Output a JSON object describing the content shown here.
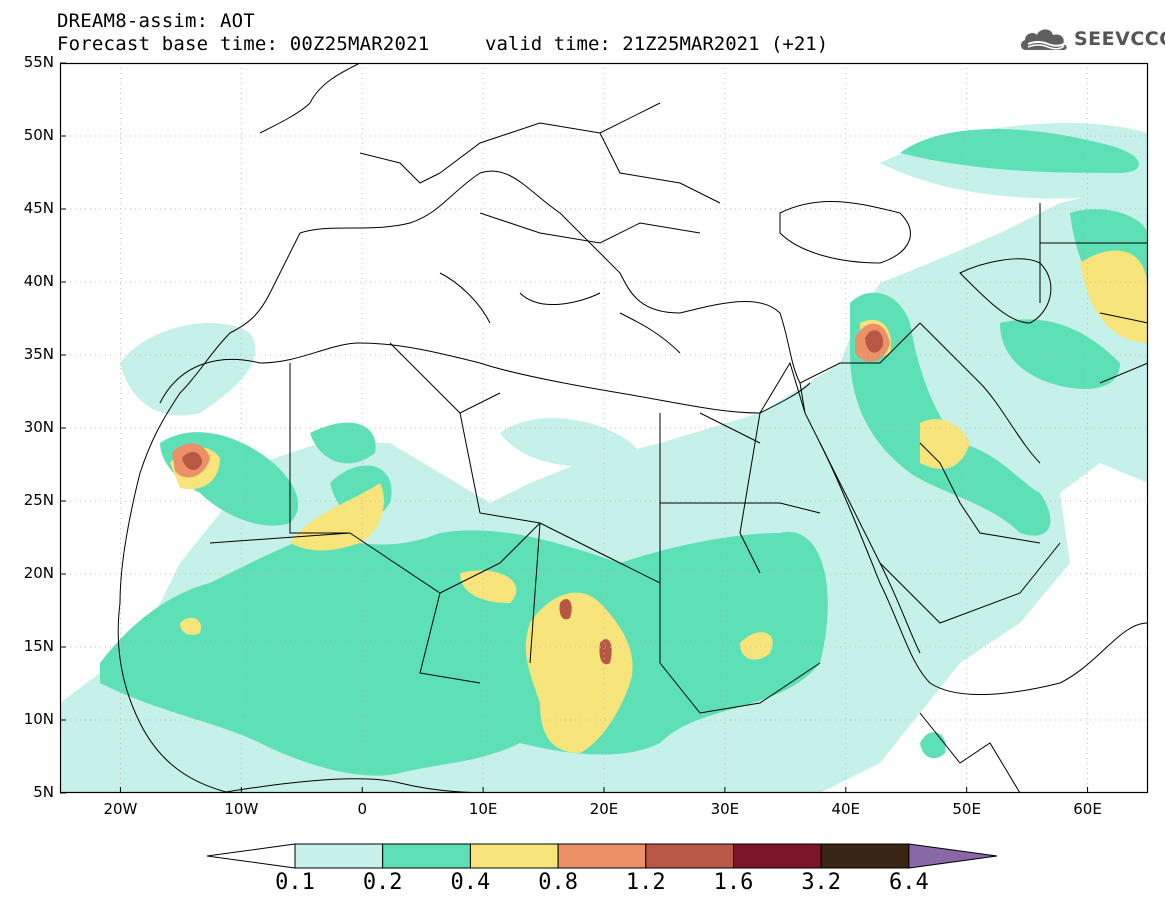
{
  "header": {
    "title": "DREAM8-assim: AOT",
    "base_time": "Forecast base time: 00Z25MAR2021",
    "valid_time": "valid time: 21Z25MAR2021 (+21)"
  },
  "logo": {
    "text": "SEEVCCC",
    "icon": "cloud-logo-icon"
  },
  "map": {
    "lat_labels": [
      "55N",
      "50N",
      "45N",
      "40N",
      "35N",
      "30N",
      "25N",
      "20N",
      "15N",
      "10N",
      "5N"
    ],
    "lon_labels": [
      "20W",
      "10W",
      "0",
      "10E",
      "20E",
      "30E",
      "40E",
      "50E",
      "60E"
    ],
    "lon_range": [
      -25,
      65
    ],
    "lat_range": [
      5,
      55
    ],
    "grid": "dotted"
  },
  "legend": {
    "thresholds": [
      "0.1",
      "0.2",
      "0.4",
      "0.8",
      "1.2",
      "1.6",
      "3.2",
      "6.4"
    ],
    "colors": [
      "#c6f0ea",
      "#5ee0b6",
      "#f7e47a",
      "#ec9068",
      "#b85744",
      "#7d1428",
      "#3a2515",
      "#8a68a8"
    ]
  }
}
